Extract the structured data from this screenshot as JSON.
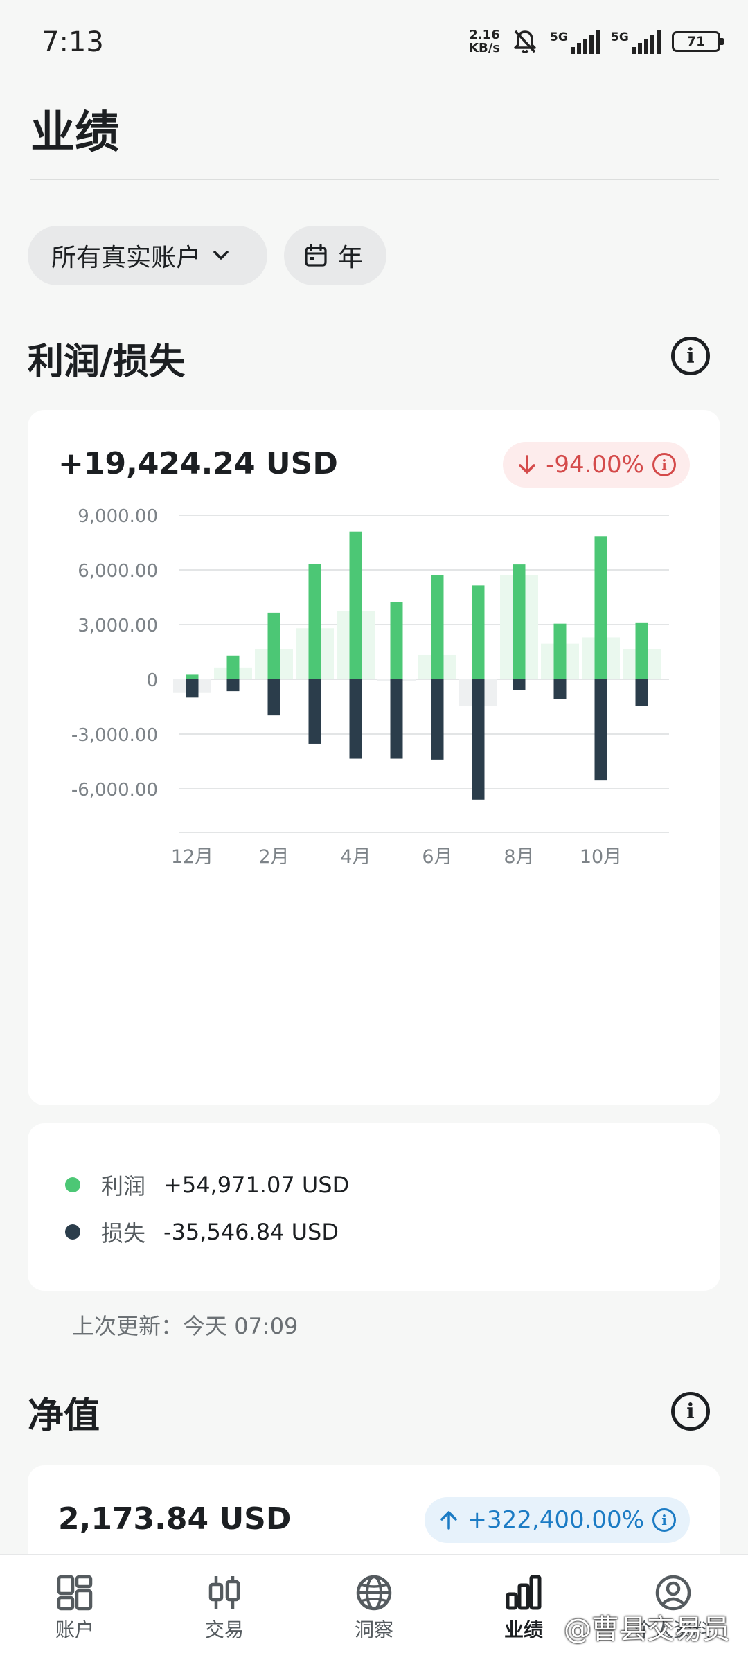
{
  "status_bar": {
    "time": "7:13",
    "net_speed_value": "2.16",
    "net_speed_unit": "KB/s",
    "signal_1": "5G",
    "signal_2": "5G",
    "battery": "71"
  },
  "page": {
    "title": "业绩"
  },
  "filters": {
    "account": "所有真实账户",
    "period": "年"
  },
  "profit_loss": {
    "section_title": "利润/损失",
    "total": "+19,424.24 USD",
    "change": "-94.00%",
    "legend": [
      {
        "label": "利润",
        "value": "+54,971.07 USD",
        "color": "#4cc775"
      },
      {
        "label": "损失",
        "value": "-35,546.84 USD",
        "color": "#2b3d4b"
      }
    ],
    "last_updated_label": "上次更新：",
    "last_updated_value": "今天 07:09"
  },
  "net_value": {
    "section_title": "净值",
    "total": "2,173.84 USD",
    "change": "+322,400.00%"
  },
  "chart_data": {
    "type": "bar",
    "categories": [
      "12月",
      "1月",
      "2月",
      "3月",
      "4月",
      "5月",
      "6月",
      "7月",
      "8月",
      "9月",
      "10月",
      "11月"
    ],
    "x_tick_labels": [
      "12月",
      "2月",
      "4月",
      "6月",
      "8月",
      "10月"
    ],
    "y_tick_labels": [
      "9,000.00",
      "6,000.00",
      "3,000.00",
      "0",
      "-3,000.00",
      "-6,000.00"
    ],
    "ylim": [
      -8000,
      9000
    ],
    "grid": true,
    "series": [
      {
        "name": "利润",
        "color": "#4cc775",
        "values": [
          250,
          1300,
          3650,
          6330,
          8100,
          4250,
          5730,
          5150,
          6300,
          3050,
          7850,
          3120
        ]
      },
      {
        "name": "损失",
        "color": "#2b3d4b",
        "values": [
          -1000,
          -650,
          -1980,
          -3530,
          -4350,
          -4350,
          -4400,
          -6600,
          -580,
          -1100,
          -5550,
          -1450
        ]
      }
    ],
    "net_values": [
      -750,
      650,
      1670,
      2800,
      3750,
      -100,
      1330,
      -1450,
      5700,
      1950,
      2300,
      1670
    ]
  },
  "nav": [
    {
      "label": "账户",
      "icon": "grid-icon"
    },
    {
      "label": "交易",
      "icon": "candlestick-icon"
    },
    {
      "label": "洞察",
      "icon": "globe-icon"
    },
    {
      "label": "业绩",
      "icon": "bar-chart-icon"
    },
    {
      "label": "个人资料",
      "icon": "profile-icon"
    }
  ],
  "watermark": "@曹县交易员"
}
